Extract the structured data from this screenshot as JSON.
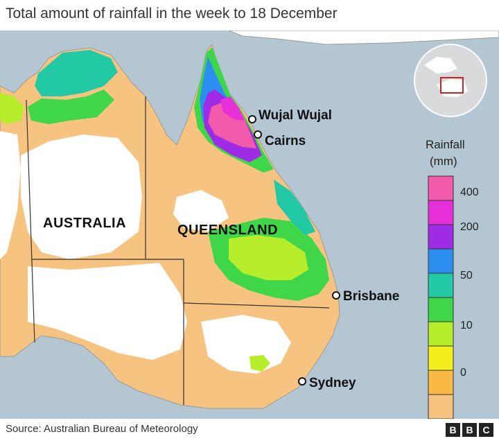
{
  "title": "Total amount of rainfall in the week to 18 December",
  "regions": {
    "country": "AUSTRALIA",
    "state": "QUEENSLAND"
  },
  "cities": [
    {
      "name": "Wujal Wujal"
    },
    {
      "name": "Cairns"
    },
    {
      "name": "Brisbane"
    },
    {
      "name": "Sydney"
    }
  ],
  "legend": {
    "title_line1": "Rainfall",
    "title_line2": "(mm)",
    "ticks": [
      "400",
      "200",
      "50",
      "10",
      "0"
    ],
    "colors": [
      "#f05aa8",
      "#e62fd8",
      "#a02be6",
      "#2b8fef",
      "#22c9a4",
      "#3fd64a",
      "#b7ee2b",
      "#f4ef1c",
      "#f7b846",
      "#f6c380",
      "#ffffff"
    ]
  },
  "source": "Source: Australian Bureau of Meteorology",
  "logo": [
    "B",
    "B",
    "C"
  ],
  "colors": {
    "sea": "#b3c6d1",
    "land": "#ffffff"
  }
}
